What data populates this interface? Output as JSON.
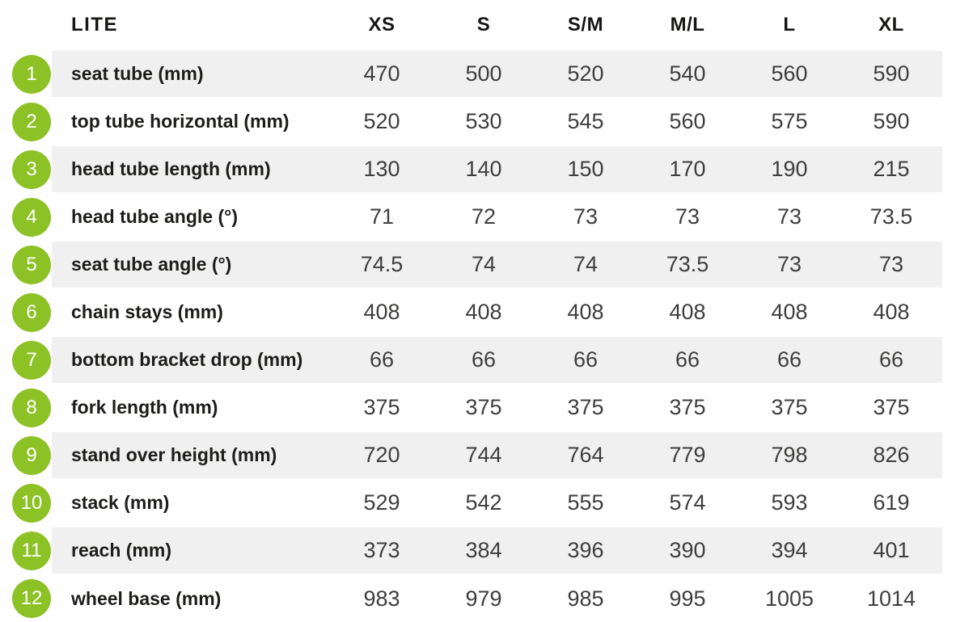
{
  "colors": {
    "accent_green": "#8dc226",
    "row_stripe": "#f0f0f0",
    "label_text": "#1d1d1b",
    "value_text": "#3e3e3d"
  },
  "chart_data": {
    "type": "table",
    "title": "LITE",
    "columns": [
      "LITE",
      "XS",
      "S",
      "S/M",
      "M/L",
      "L",
      "XL"
    ],
    "size_headers": [
      "XS",
      "S",
      "S/M",
      "M/L",
      "L",
      "XL"
    ],
    "rows": [
      {
        "num": "1",
        "label": "seat tube (mm)",
        "values": [
          "470",
          "500",
          "520",
          "540",
          "560",
          "590"
        ]
      },
      {
        "num": "2",
        "label": "top tube horizontal (mm)",
        "values": [
          "520",
          "530",
          "545",
          "560",
          "575",
          "590"
        ]
      },
      {
        "num": "3",
        "label": "head tube length (mm)",
        "values": [
          "130",
          "140",
          "150",
          "170",
          "190",
          "215"
        ]
      },
      {
        "num": "4",
        "label": "head tube angle (°)",
        "values": [
          "71",
          "72",
          "73",
          "73",
          "73",
          "73.5"
        ]
      },
      {
        "num": "5",
        "label": "seat tube angle (°)",
        "values": [
          "74.5",
          "74",
          "74",
          "73.5",
          "73",
          "73"
        ]
      },
      {
        "num": "6",
        "label": "chain stays (mm)",
        "values": [
          "408",
          "408",
          "408",
          "408",
          "408",
          "408"
        ]
      },
      {
        "num": "7",
        "label": "bottom bracket drop (mm)",
        "values": [
          "66",
          "66",
          "66",
          "66",
          "66",
          "66"
        ]
      },
      {
        "num": "8",
        "label": "fork length (mm)",
        "values": [
          "375",
          "375",
          "375",
          "375",
          "375",
          "375"
        ]
      },
      {
        "num": "9",
        "label": "stand over height (mm)",
        "values": [
          "720",
          "744",
          "764",
          "779",
          "798",
          "826"
        ]
      },
      {
        "num": "10",
        "label": "stack (mm)",
        "values": [
          "529",
          "542",
          "555",
          "574",
          "593",
          "619"
        ]
      },
      {
        "num": "11",
        "label": "reach (mm)",
        "values": [
          "373",
          "384",
          "396",
          "390",
          "394",
          "401"
        ]
      },
      {
        "num": "12",
        "label": "wheel base (mm)",
        "values": [
          "983",
          "979",
          "985",
          "995",
          "1005",
          "1014"
        ]
      }
    ]
  }
}
